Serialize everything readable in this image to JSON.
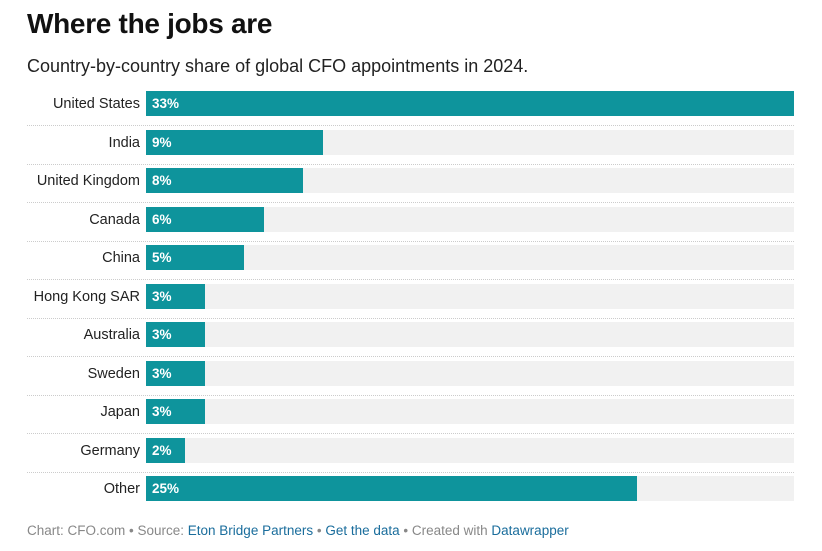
{
  "chart_data": {
    "type": "bar",
    "orientation": "horizontal",
    "title": "Where the jobs are",
    "subtitle": "Country-by-country share of global CFO appointments in 2024.",
    "categories": [
      "United States",
      "India",
      "United Kingdom",
      "Canada",
      "China",
      "Hong Kong SAR",
      "Australia",
      "Sweden",
      "Japan",
      "Germany",
      "Other"
    ],
    "values": [
      33,
      9,
      8,
      6,
      5,
      3,
      3,
      3,
      3,
      2,
      25
    ],
    "value_labels": [
      "33%",
      "9%",
      "8%",
      "6%",
      "5%",
      "3%",
      "3%",
      "3%",
      "3%",
      "2%",
      "25%"
    ],
    "xlim": [
      0,
      33
    ],
    "unit": "%",
    "grid": false,
    "bar_color": "#0e949c",
    "track_color": "#f1f1f1"
  },
  "footer": {
    "prefix": "Chart: CFO.com • Source: ",
    "source_link": "Eton Bridge Partners",
    "sep1": " • ",
    "data_link": "Get the data",
    "sep2": " • Created with ",
    "tool_link": "Datawrapper"
  }
}
